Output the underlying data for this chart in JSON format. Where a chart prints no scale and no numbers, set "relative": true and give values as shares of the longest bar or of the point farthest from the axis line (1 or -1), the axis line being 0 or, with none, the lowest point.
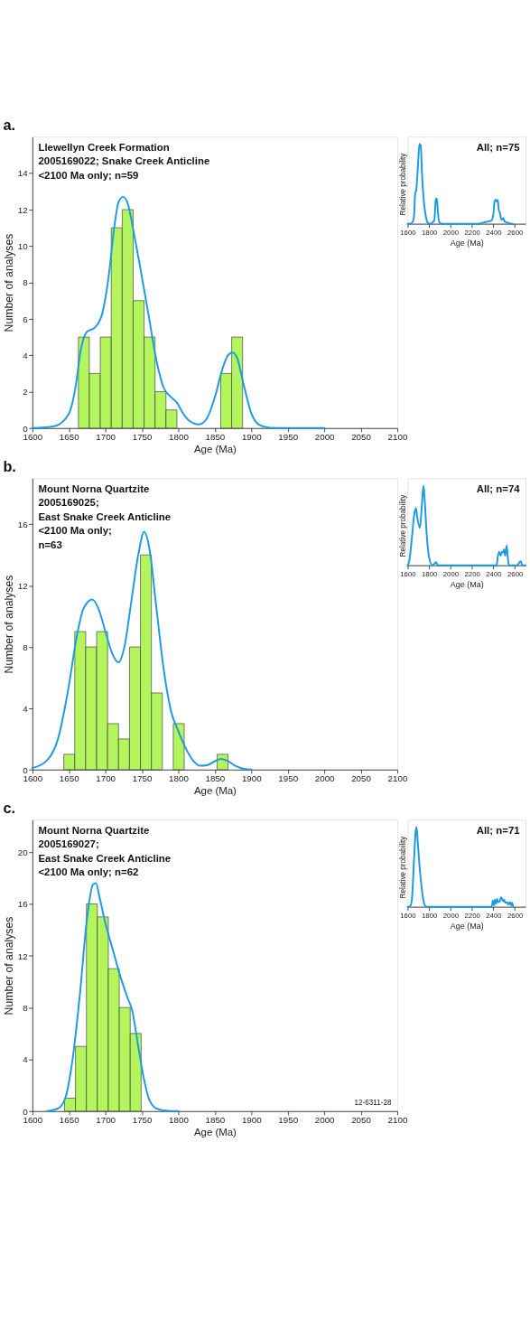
{
  "chart_data": [
    {
      "type": "histogram",
      "title": "a.",
      "xlabel": "Age (Ma)",
      "ylabel": "Number of analyses",
      "color": "#b3f55c",
      "bins": [
        1663,
        1678,
        1693,
        1708,
        1723,
        1738,
        1753,
        1768,
        1783,
        1798,
        1813,
        1828,
        1843,
        1858,
        1873,
        1888
      ],
      "values": [
        5,
        3,
        5,
        11,
        12,
        7,
        5,
        2,
        1,
        0,
        0,
        0,
        0,
        3,
        5
      ],
      "xlim": [
        1600,
        2100
      ],
      "xticks": [
        1600,
        1650,
        1700,
        1750,
        1800,
        1850,
        1900,
        1950,
        2000,
        2050,
        2100
      ],
      "ylim": [
        0,
        16
      ],
      "yticks": [
        0,
        2,
        4,
        6,
        8,
        10,
        12,
        14
      ],
      "annotations": [
        "Llewellyn Creek Formation\n2005169022; Snake Creek Anticline\n<2100 Ma only; n=59"
      ],
      "series": [
        {
          "type": "line",
          "color": "#1b9ae6",
          "x": [
            1600,
            1630,
            1650,
            1660,
            1665,
            1675,
            1685,
            1695,
            1705,
            1712,
            1718,
            1724,
            1730,
            1740,
            1750,
            1760,
            1770,
            1780,
            1790,
            1798,
            1805,
            1815,
            1828,
            1840,
            1850,
            1860,
            1868,
            1874,
            1880,
            1890,
            1900,
            1910,
            1925,
            1950,
            2000
          ],
          "values": [
            0,
            0.1,
            0.8,
            2.5,
            4,
            5.3,
            5.5,
            6.2,
            8.5,
            11,
            12.4,
            12.7,
            12.4,
            10.5,
            8.3,
            6,
            3.7,
            2.2,
            1.7,
            1.4,
            0.9,
            0.4,
            0.2,
            0.6,
            1.7,
            3.2,
            4,
            4.15,
            3.9,
            2.3,
            0.8,
            0.2,
            0.02,
            0,
            0
          ]
        }
      ]
    },
    {
      "type": "line",
      "relative": true,
      "xlabel": "Age (Ma)",
      "ylabel": "Relative probability",
      "xlim": [
        1600,
        2700
      ],
      "xticks": [
        1600,
        1800,
        2000,
        2200,
        2400,
        2600
      ],
      "annotations": [
        "All; n=75"
      ],
      "series": [
        {
          "color": "#1b9ae6",
          "x": [
            1600,
            1640,
            1660,
            1670,
            1680,
            1695,
            1710,
            1722,
            1735,
            1750,
            1765,
            1790,
            1810,
            1850,
            1862,
            1872,
            1882,
            1895,
            1920,
            2250,
            2320,
            2380,
            2400,
            2410,
            2420,
            2430,
            2440,
            2450,
            2460,
            2475,
            2490,
            2505,
            2540,
            2580
          ],
          "values": [
            0,
            0.01,
            0.1,
            0.38,
            0.42,
            0.7,
            1.0,
            0.98,
            0.6,
            0.3,
            0.13,
            0.01,
            0,
            0.05,
            0.3,
            0.32,
            0.15,
            0.02,
            0,
            0,
            0.02,
            0.04,
            0.12,
            0.28,
            0.3,
            0.28,
            0.3,
            0.18,
            0.14,
            0.05,
            0.07,
            0.03,
            0.01,
            0
          ]
        }
      ]
    },
    {
      "type": "histogram",
      "title": "b.",
      "xlabel": "Age (Ma)",
      "ylabel": "Number of analyses",
      "color": "#b3f55c",
      "bins": [
        1643,
        1658,
        1673,
        1688,
        1703,
        1718,
        1733,
        1748,
        1763,
        1778,
        1793,
        1808,
        1823,
        1838,
        1853,
        1868
      ],
      "values": [
        1,
        9,
        8,
        9,
        3,
        2,
        8,
        14,
        5,
        0,
        3,
        0,
        0,
        0,
        1
      ],
      "xlim": [
        1600,
        2100
      ],
      "xticks": [
        1600,
        1650,
        1700,
        1750,
        1800,
        1850,
        1900,
        1950,
        2000,
        2050,
        2100
      ],
      "ylim": [
        0,
        19
      ],
      "yticks": [
        0,
        4,
        8,
        12,
        16
      ],
      "annotations": [
        "Mount Norna Quartzite\n2005169025;\nEast Snake Creek Anticline\n<2100 Ma only;\nn=63"
      ],
      "series": [
        {
          "type": "line",
          "color": "#1b9ae6",
          "x": [
            1600,
            1620,
            1635,
            1650,
            1660,
            1670,
            1682,
            1692,
            1700,
            1710,
            1718,
            1726,
            1735,
            1745,
            1753,
            1760,
            1770,
            1780,
            1790,
            1800,
            1810,
            1820,
            1830,
            1840,
            1850,
            1858,
            1866,
            1878,
            1890,
            1900
          ],
          "values": [
            0.1,
            0.6,
            2,
            5.5,
            8.5,
            10.5,
            11.1,
            10.3,
            9,
            7.5,
            7,
            8,
            10.8,
            14,
            15.5,
            14.5,
            10.5,
            6.5,
            3.8,
            2.5,
            1.4,
            0.6,
            0.25,
            0.3,
            0.55,
            0.7,
            0.6,
            0.25,
            0.05,
            0
          ]
        }
      ]
    },
    {
      "type": "line",
      "relative": true,
      "xlabel": "Age (Ma)",
      "ylabel": "Relative probability",
      "xlim": [
        1600,
        2700
      ],
      "xticks": [
        1600,
        1800,
        2000,
        2200,
        2400,
        2600
      ],
      "annotations": [
        "All; n=74"
      ],
      "series": [
        {
          "color": "#1b9ae6",
          "x": [
            1600,
            1615,
            1640,
            1660,
            1677,
            1690,
            1715,
            1730,
            1748,
            1760,
            1780,
            1800,
            1830,
            1850,
            1865,
            1880,
            2430,
            2440,
            2455,
            2468,
            2480,
            2490,
            2500,
            2510,
            2524,
            2534,
            2545,
            2620,
            2640,
            2655,
            2670,
            2700
          ],
          "values": [
            0,
            0.05,
            0.35,
            0.62,
            0.72,
            0.6,
            0.47,
            0.7,
            1.0,
            0.8,
            0.35,
            0.1,
            0,
            0.02,
            0.04,
            0,
            0,
            0.1,
            0.17,
            0.12,
            0.17,
            0.16,
            0.2,
            0.12,
            0.25,
            0.1,
            0,
            0,
            0.03,
            0.05,
            0,
            0
          ]
        }
      ]
    },
    {
      "type": "histogram",
      "title": "c.",
      "xlabel": "Age (Ma)",
      "ylabel": "Number of analyses",
      "color": "#b3f55c",
      "bins": [
        1644,
        1659,
        1674,
        1689,
        1704,
        1719,
        1734,
        1749
      ],
      "values": [
        1,
        5,
        16,
        15,
        11,
        8,
        6
      ],
      "xlim": [
        1600,
        2100
      ],
      "xticks": [
        1600,
        1650,
        1700,
        1750,
        1800,
        1850,
        1900,
        1950,
        2000,
        2050,
        2100
      ],
      "ylim": [
        0,
        22.5
      ],
      "yticks": [
        0,
        4,
        8,
        12,
        16,
        20
      ],
      "annotations": [
        "Mount Norna Quartzite\n2005169027;\nEast Snake Creek Anticline\n<2100 Ma only; n=62",
        "12-6311-28"
      ],
      "series": [
        {
          "type": "line",
          "color": "#1b9ae6",
          "x": [
            1620,
            1635,
            1645,
            1655,
            1665,
            1675,
            1683,
            1687,
            1692,
            1700,
            1710,
            1720,
            1730,
            1737,
            1745,
            1752,
            1760,
            1770,
            1785,
            1800
          ],
          "values": [
            0,
            0.2,
            1,
            4,
            9,
            15,
            17.5,
            17.6,
            16.5,
            14.5,
            12.5,
            10.5,
            8.8,
            7.7,
            5,
            2.7,
            0.9,
            0.2,
            0.02,
            0
          ]
        }
      ]
    },
    {
      "type": "line",
      "relative": true,
      "xlabel": "Age (Ma)",
      "ylabel": "Relative probability",
      "xlim": [
        1600,
        2700
      ],
      "xticks": [
        1600,
        1800,
        2000,
        2200,
        2400,
        2600
      ],
      "annotations": [
        "All; n=71"
      ],
      "series": [
        {
          "color": "#1b9ae6",
          "x": [
            1600,
            1625,
            1640,
            1660,
            1675,
            1683,
            1695,
            1715,
            1730,
            1745,
            1760,
            1775,
            2385,
            2395,
            2405,
            2415,
            2425,
            2435,
            2445,
            2460,
            2470,
            2480,
            2490,
            2500,
            2510,
            2525,
            2540,
            2555,
            2565,
            2575,
            2585
          ],
          "values": [
            0,
            0.01,
            0.1,
            0.6,
            0.95,
            1.0,
            0.8,
            0.45,
            0.25,
            0.1,
            0.02,
            0,
            0,
            0.08,
            0.02,
            0.09,
            0.04,
            0.1,
            0.06,
            0.07,
            0.12,
            0.1,
            0.07,
            0.09,
            0.05,
            0.06,
            0.03,
            0.06,
            0.02,
            0.05,
            0
          ]
        }
      ]
    }
  ]
}
